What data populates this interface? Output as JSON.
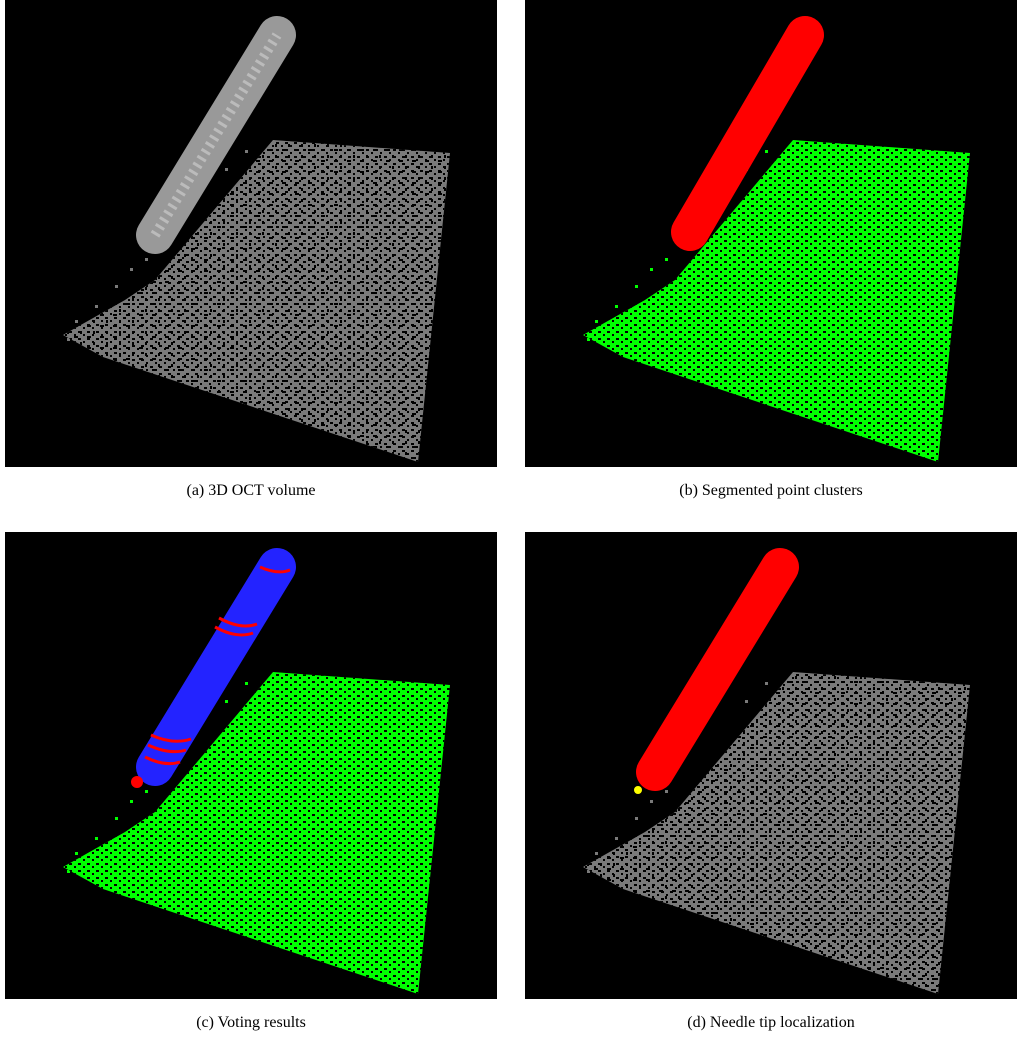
{
  "figure": {
    "panels": [
      {
        "caption": "(a) 3D OCT volume"
      },
      {
        "caption": "(b) Segmented point clusters"
      },
      {
        "caption": "(c) Voting results"
      },
      {
        "caption": "(d) Needle tip localization"
      }
    ]
  }
}
